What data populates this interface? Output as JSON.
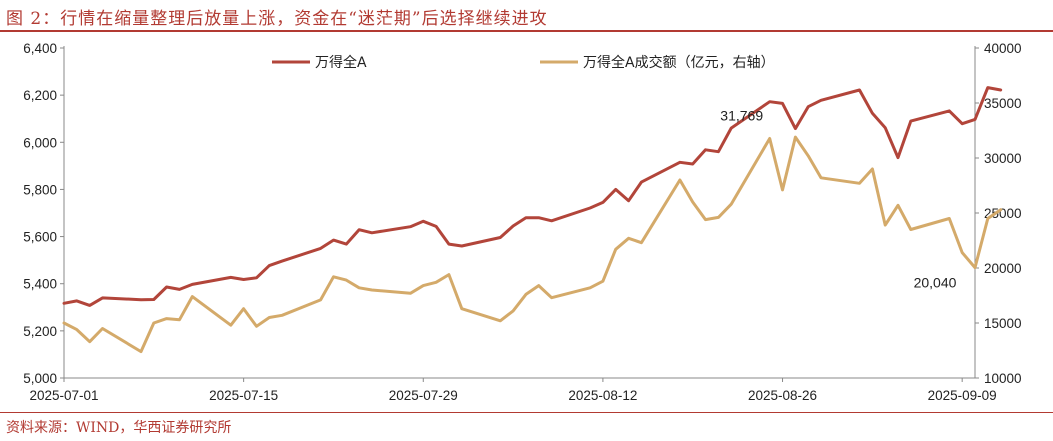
{
  "title": "图 2：行情在缩量整理后放量上涨，资金在“迷茫期”后选择继续进攻",
  "source": "资料来源：WIND，华西证券研究所",
  "chart_data": {
    "type": "line",
    "x_tick_labels": [
      "2025-07-01",
      "2025-07-15",
      "2025-07-29",
      "2025-08-12",
      "2025-08-26",
      "2025-09-09"
    ],
    "x_tick_dates": [
      "2025-07-01",
      "2025-07-15",
      "2025-07-29",
      "2025-08-12",
      "2025-08-26",
      "2025-09-09"
    ],
    "x_range": [
      "2025-07-01",
      "2025-09-10"
    ],
    "y_left": {
      "range": [
        5000,
        6400
      ],
      "ticks": [
        5000,
        5200,
        5400,
        5600,
        5800,
        6000,
        6200,
        6400
      ],
      "tick_labels": [
        "5,000",
        "5,200",
        "5,400",
        "5,600",
        "5,800",
        "6,000",
        "6,200",
        "6,400"
      ]
    },
    "y_right": {
      "range": [
        10000,
        40000
      ],
      "ticks": [
        10000,
        15000,
        20000,
        25000,
        30000,
        35000,
        40000
      ],
      "tick_labels": [
        "10000",
        "15000",
        "20000",
        "25000",
        "30000",
        "35000",
        "40000"
      ]
    },
    "grid": false,
    "legend_position": "top",
    "series": [
      {
        "name": "万得全A",
        "axis": "left",
        "color": "#b2453a",
        "points": [
          [
            "2025-07-01",
            5317
          ],
          [
            "2025-07-02",
            5327
          ],
          [
            "2025-07-03",
            5308
          ],
          [
            "2025-07-04",
            5340
          ],
          [
            "2025-07-07",
            5332
          ],
          [
            "2025-07-08",
            5333
          ],
          [
            "2025-07-09",
            5386
          ],
          [
            "2025-07-10",
            5376
          ],
          [
            "2025-07-11",
            5397
          ],
          [
            "2025-07-14",
            5427
          ],
          [
            "2025-07-15",
            5418
          ],
          [
            "2025-07-16",
            5425
          ],
          [
            "2025-07-17",
            5477
          ],
          [
            "2025-07-18",
            5496
          ],
          [
            "2025-07-21",
            5550
          ],
          [
            "2025-07-22",
            5585
          ],
          [
            "2025-07-23",
            5568
          ],
          [
            "2025-07-24",
            5629
          ],
          [
            "2025-07-25",
            5616
          ],
          [
            "2025-07-28",
            5642
          ],
          [
            "2025-07-29",
            5665
          ],
          [
            "2025-07-30",
            5643
          ],
          [
            "2025-07-31",
            5568
          ],
          [
            "2025-08-01",
            5560
          ],
          [
            "2025-08-04",
            5596
          ],
          [
            "2025-08-05",
            5645
          ],
          [
            "2025-08-06",
            5680
          ],
          [
            "2025-08-07",
            5680
          ],
          [
            "2025-08-08",
            5667
          ],
          [
            "2025-08-11",
            5721
          ],
          [
            "2025-08-12",
            5745
          ],
          [
            "2025-08-13",
            5800
          ],
          [
            "2025-08-14",
            5752
          ],
          [
            "2025-08-15",
            5831
          ],
          [
            "2025-08-18",
            5915
          ],
          [
            "2025-08-19",
            5908
          ],
          [
            "2025-08-20",
            5968
          ],
          [
            "2025-08-21",
            5960
          ],
          [
            "2025-08-22",
            6060
          ],
          [
            "2025-08-25",
            6172
          ],
          [
            "2025-08-26",
            6165
          ],
          [
            "2025-08-27",
            6058
          ],
          [
            "2025-08-28",
            6151
          ],
          [
            "2025-08-29",
            6178
          ],
          [
            "2025-09-01",
            6222
          ],
          [
            "2025-09-02",
            6123
          ],
          [
            "2025-09-03",
            6062
          ],
          [
            "2025-09-04",
            5935
          ],
          [
            "2025-09-05",
            6090
          ],
          [
            "2025-09-08",
            6133
          ],
          [
            "2025-09-09",
            6079
          ],
          [
            "2025-09-10",
            6097
          ],
          [
            "2025-09-11",
            6232
          ],
          [
            "2025-09-12",
            6222
          ]
        ]
      },
      {
        "name": "万得全A成交额（亿元，右轴）",
        "axis": "right",
        "color": "#d4aa6a",
        "points": [
          [
            "2025-07-01",
            15000
          ],
          [
            "2025-07-02",
            14400
          ],
          [
            "2025-07-03",
            13300
          ],
          [
            "2025-07-04",
            14500
          ],
          [
            "2025-07-07",
            12400
          ],
          [
            "2025-07-08",
            15000
          ],
          [
            "2025-07-09",
            15400
          ],
          [
            "2025-07-10",
            15300
          ],
          [
            "2025-07-11",
            17400
          ],
          [
            "2025-07-14",
            14800
          ],
          [
            "2025-07-15",
            16300
          ],
          [
            "2025-07-16",
            14700
          ],
          [
            "2025-07-17",
            15500
          ],
          [
            "2025-07-18",
            15700
          ],
          [
            "2025-07-21",
            17100
          ],
          [
            "2025-07-22",
            19200
          ],
          [
            "2025-07-23",
            18900
          ],
          [
            "2025-07-24",
            18200
          ],
          [
            "2025-07-25",
            18000
          ],
          [
            "2025-07-28",
            17700
          ],
          [
            "2025-07-29",
            18400
          ],
          [
            "2025-07-30",
            18700
          ],
          [
            "2025-07-31",
            19400
          ],
          [
            "2025-08-01",
            16300
          ],
          [
            "2025-08-04",
            15200
          ],
          [
            "2025-08-05",
            16100
          ],
          [
            "2025-08-06",
            17600
          ],
          [
            "2025-08-07",
            18400
          ],
          [
            "2025-08-08",
            17300
          ],
          [
            "2025-08-11",
            18200
          ],
          [
            "2025-08-12",
            18800
          ],
          [
            "2025-08-13",
            21700
          ],
          [
            "2025-08-14",
            22700
          ],
          [
            "2025-08-15",
            22300
          ],
          [
            "2025-08-18",
            28000
          ],
          [
            "2025-08-19",
            26000
          ],
          [
            "2025-08-20",
            24400
          ],
          [
            "2025-08-21",
            24600
          ],
          [
            "2025-08-22",
            25800
          ],
          [
            "2025-08-25",
            31769
          ],
          [
            "2025-08-26",
            27100
          ],
          [
            "2025-08-27",
            31900
          ],
          [
            "2025-08-28",
            30200
          ],
          [
            "2025-08-29",
            28200
          ],
          [
            "2025-09-01",
            27700
          ],
          [
            "2025-09-02",
            29000
          ],
          [
            "2025-09-03",
            23900
          ],
          [
            "2025-09-04",
            25700
          ],
          [
            "2025-09-05",
            23500
          ],
          [
            "2025-09-08",
            24500
          ],
          [
            "2025-09-09",
            21400
          ],
          [
            "2025-09-10",
            20040
          ],
          [
            "2025-09-11",
            24500
          ],
          [
            "2025-09-12",
            25300
          ]
        ]
      }
    ],
    "annotations": [
      {
        "text": "31,769",
        "series": 1,
        "date": "2025-08-25",
        "value": 31769
      },
      {
        "text": "20,040",
        "series": 1,
        "date": "2025-09-10",
        "value": 20040
      }
    ]
  }
}
